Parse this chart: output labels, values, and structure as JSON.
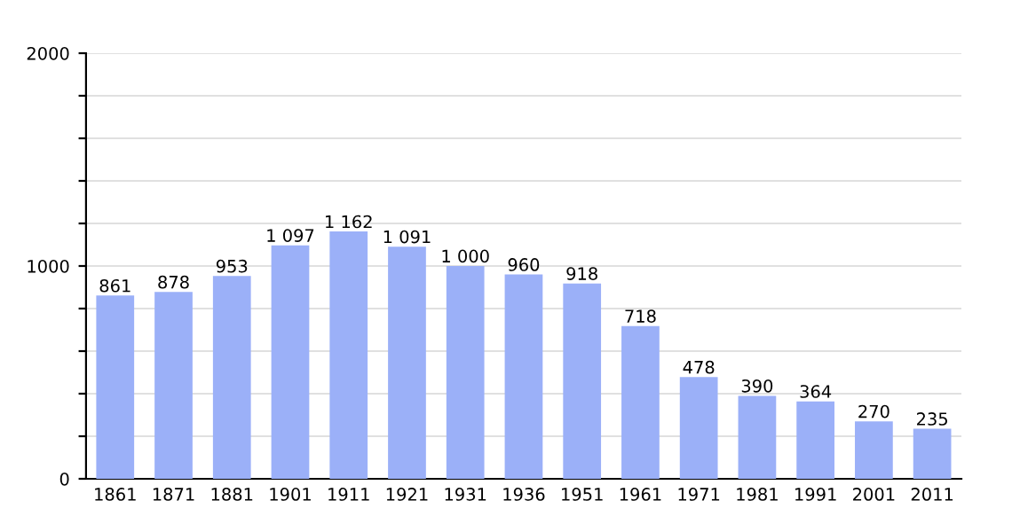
{
  "chart_data": {
    "type": "bar",
    "categories": [
      "1861",
      "1871",
      "1881",
      "1901",
      "1911",
      "1921",
      "1931",
      "1936",
      "1951",
      "1961",
      "1971",
      "1981",
      "1991",
      "2001",
      "2011"
    ],
    "values": [
      861,
      878,
      953,
      1097,
      1162,
      1091,
      1000,
      960,
      918,
      718,
      478,
      390,
      364,
      270,
      235
    ],
    "value_labels": [
      "861",
      "878",
      "953",
      "1 097",
      "1 162",
      "1 091",
      "1 000",
      "960",
      "918",
      "718",
      "478",
      "390",
      "364",
      "270",
      "235"
    ],
    "color": "#9bb0f8",
    "ylim": [
      0,
      2000
    ],
    "yticks": [
      0,
      {
        "value": 200,
        "label": null
      },
      {
        "value": 400,
        "label": null
      },
      {
        "value": 600,
        "label": null
      },
      {
        "value": 800,
        "label": null
      },
      1000,
      {
        "value": 1200,
        "label": null
      },
      {
        "value": 1400,
        "label": null
      },
      {
        "value": 1600,
        "label": null
      },
      {
        "value": 1800,
        "label": null
      },
      2000
    ],
    "grid": "y",
    "legend": false
  }
}
